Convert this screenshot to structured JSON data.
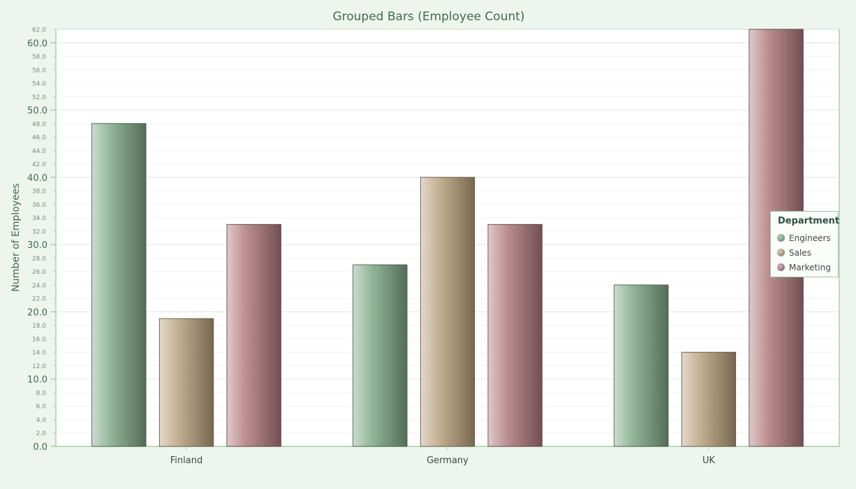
{
  "chart_data": {
    "type": "bar",
    "title": "Grouped Bars (Employee Count)",
    "ylabel": "Number of Employees",
    "xlabel": "",
    "categories": [
      "Finland",
      "Germany",
      "UK"
    ],
    "series": [
      {
        "name": "Engineers",
        "values": [
          48,
          27,
          24
        ],
        "color": "#7fa886"
      },
      {
        "name": "Sales",
        "values": [
          19,
          40,
          14
        ],
        "color": "#b8a07c"
      },
      {
        "name": "Marketing",
        "values": [
          33,
          33,
          62
        ],
        "color": "#b07a7e"
      }
    ],
    "ylim": [
      0,
      62
    ],
    "major_ticks": [
      0,
      10,
      20,
      30,
      40,
      50,
      60
    ],
    "minor_ticks": [
      2,
      4,
      6,
      8,
      12,
      14,
      16,
      18,
      22,
      24,
      26,
      28,
      32,
      34,
      36,
      38,
      42,
      44,
      46,
      48,
      52,
      54,
      56,
      58,
      62
    ],
    "grid": true,
    "legend": {
      "title": "Department",
      "position": "right"
    }
  }
}
